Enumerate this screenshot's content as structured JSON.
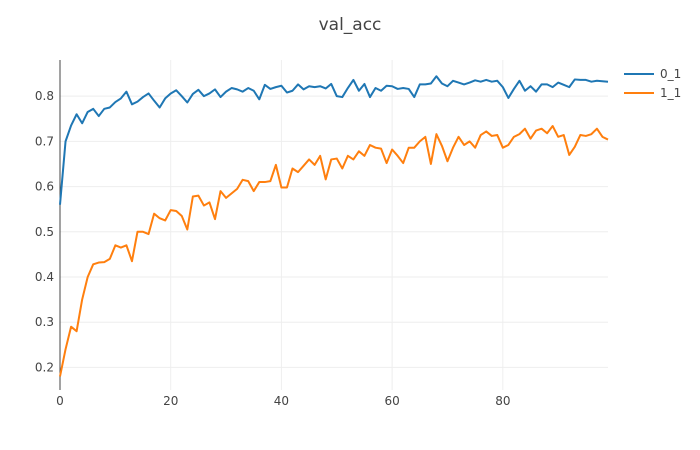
{
  "chart_data": {
    "type": "line",
    "title": "val_acc",
    "xlabel": "",
    "ylabel": "",
    "xlim": [
      0,
      99
    ],
    "ylim": [
      0.15,
      0.88
    ],
    "xticks": [
      0,
      20,
      40,
      60,
      80
    ],
    "yticks": [
      0.2,
      0.3,
      0.4,
      0.5,
      0.6,
      0.7,
      0.8
    ],
    "ytick_labels": [
      "0.2",
      "0.3",
      "0.4",
      "0.5",
      "0.6",
      "0.7",
      "0.8"
    ],
    "grid": true,
    "legend_position": "top-right",
    "colors": [
      "#1f77b4",
      "#ff7f0e"
    ],
    "series": [
      {
        "name": "0_1",
        "values": [
          0.56,
          0.7,
          0.735,
          0.76,
          0.74,
          0.765,
          0.772,
          0.756,
          0.772,
          0.775,
          0.787,
          0.795,
          0.81,
          0.782,
          0.788,
          0.798,
          0.806,
          0.79,
          0.775,
          0.795,
          0.806,
          0.813,
          0.8,
          0.786,
          0.805,
          0.814,
          0.8,
          0.806,
          0.815,
          0.798,
          0.81,
          0.818,
          0.815,
          0.81,
          0.818,
          0.812,
          0.793,
          0.825,
          0.816,
          0.82,
          0.823,
          0.808,
          0.812,
          0.826,
          0.815,
          0.822,
          0.82,
          0.822,
          0.817,
          0.827,
          0.8,
          0.798,
          0.818,
          0.836,
          0.812,
          0.827,
          0.798,
          0.818,
          0.812,
          0.823,
          0.822,
          0.816,
          0.818,
          0.816,
          0.798,
          0.826,
          0.826,
          0.828,
          0.844,
          0.828,
          0.822,
          0.834,
          0.83,
          0.826,
          0.83,
          0.835,
          0.832,
          0.836,
          0.832,
          0.834,
          0.82,
          0.796,
          0.816,
          0.834,
          0.812,
          0.822,
          0.81,
          0.826,
          0.826,
          0.82,
          0.83,
          0.825,
          0.82,
          0.837,
          0.836,
          0.836,
          0.832,
          0.834,
          0.833,
          0.832
        ]
      },
      {
        "name": "1_1",
        "values": [
          0.18,
          0.24,
          0.29,
          0.28,
          0.35,
          0.4,
          0.428,
          0.432,
          0.433,
          0.44,
          0.47,
          0.465,
          0.47,
          0.435,
          0.5,
          0.5,
          0.495,
          0.54,
          0.53,
          0.525,
          0.548,
          0.546,
          0.535,
          0.505,
          0.578,
          0.58,
          0.558,
          0.565,
          0.528,
          0.59,
          0.575,
          0.585,
          0.595,
          0.615,
          0.612,
          0.59,
          0.61,
          0.61,
          0.612,
          0.648,
          0.598,
          0.598,
          0.64,
          0.632,
          0.646,
          0.66,
          0.648,
          0.668,
          0.616,
          0.66,
          0.662,
          0.64,
          0.668,
          0.66,
          0.678,
          0.668,
          0.692,
          0.686,
          0.684,
          0.652,
          0.682,
          0.668,
          0.652,
          0.686,
          0.686,
          0.7,
          0.71,
          0.65,
          0.716,
          0.69,
          0.656,
          0.686,
          0.71,
          0.692,
          0.7,
          0.686,
          0.714,
          0.722,
          0.712,
          0.714,
          0.686,
          0.692,
          0.71,
          0.716,
          0.728,
          0.706,
          0.724,
          0.728,
          0.718,
          0.734,
          0.71,
          0.714,
          0.67,
          0.688,
          0.714,
          0.712,
          0.716,
          0.728,
          0.71,
          0.704
        ]
      }
    ]
  }
}
